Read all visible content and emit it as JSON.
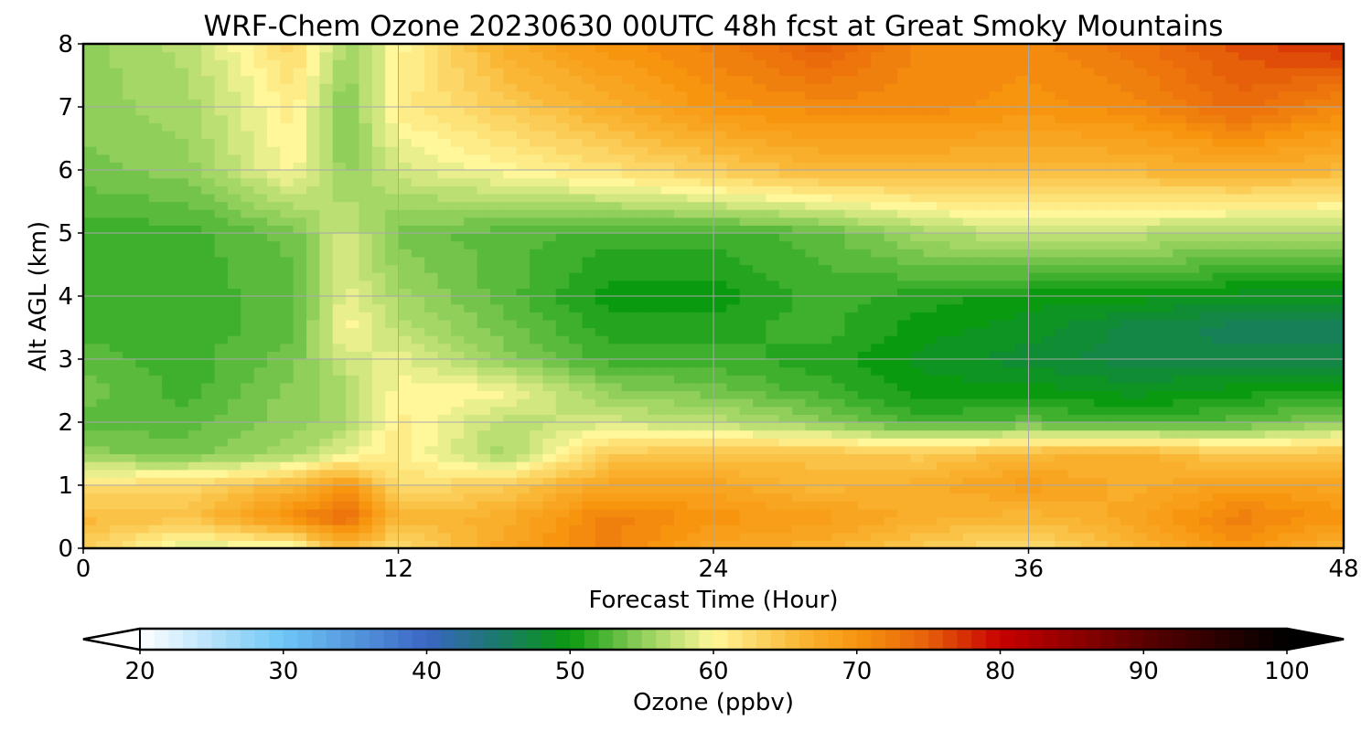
{
  "chart_data": {
    "type": "heatmap",
    "title": "WRF-Chem Ozone  20230630 00UTC 48h fcst at Great Smoky Mountains",
    "xlabel": "Forecast Time (Hour)",
    "ylabel": "Alt AGL (km)",
    "xlim": [
      0,
      48
    ],
    "ylim": [
      0,
      8
    ],
    "x_ticks": [
      0,
      12,
      24,
      36,
      48
    ],
    "y_ticks": [
      0,
      1,
      2,
      3,
      4,
      5,
      6,
      7,
      8
    ],
    "grid": true,
    "colorbar": {
      "label": "Ozone  (ppbv)",
      "min": 20,
      "max": 100,
      "ticks": [
        20,
        30,
        40,
        50,
        60,
        70,
        80,
        90,
        100
      ],
      "extend": "both",
      "stops": [
        {
          "v": 20,
          "c": "#ffffff"
        },
        {
          "v": 30,
          "c": "#6ec6f5"
        },
        {
          "v": 40,
          "c": "#3a66c4"
        },
        {
          "v": 45,
          "c": "#1a7a6a"
        },
        {
          "v": 50,
          "c": "#0a9a10"
        },
        {
          "v": 55,
          "c": "#8fcf5a"
        },
        {
          "v": 60,
          "c": "#fff799"
        },
        {
          "v": 66,
          "c": "#f9b735"
        },
        {
          "v": 70,
          "c": "#f7950f"
        },
        {
          "v": 75,
          "c": "#e6600a"
        },
        {
          "v": 80,
          "c": "#c80000"
        },
        {
          "v": 90,
          "c": "#5a0000"
        },
        {
          "v": 100,
          "c": "#000000"
        }
      ]
    },
    "grid_x": [
      0,
      4,
      8,
      10,
      12,
      16,
      20,
      24,
      28,
      32,
      36,
      40,
      44,
      48
    ],
    "grid_y": [
      0,
      0.5,
      1,
      1.5,
      2,
      2.5,
      3,
      3.5,
      4,
      5,
      6,
      7,
      8
    ],
    "values": [
      [
        64,
        58,
        59,
        66,
        62,
        68,
        72,
        68,
        67,
        64,
        62,
        66,
        70,
        66
      ],
      [
        66,
        65,
        71,
        74,
        66,
        67,
        72,
        70,
        69,
        67,
        66,
        68,
        72,
        70
      ],
      [
        62,
        63,
        66,
        70,
        62,
        64,
        68,
        68,
        66,
        67,
        69,
        67,
        69,
        68
      ],
      [
        55,
        54,
        56,
        59,
        61,
        56,
        64,
        65,
        65,
        64,
        66,
        67,
        64,
        65
      ],
      [
        53,
        53,
        55,
        56,
        61,
        57,
        58,
        57,
        55,
        52,
        53,
        52,
        53,
        55
      ],
      [
        54,
        52,
        55,
        56,
        60,
        60,
        55,
        54,
        52,
        50,
        50,
        49,
        50,
        51
      ],
      [
        53,
        52,
        54,
        58,
        59,
        55,
        52,
        52,
        51,
        49,
        48,
        47,
        47,
        47
      ],
      [
        52,
        52,
        53,
        60,
        57,
        54,
        51,
        51,
        52,
        50,
        49,
        47,
        46,
        46
      ],
      [
        52,
        52,
        53,
        59,
        56,
        53,
        50,
        50,
        52,
        51,
        50,
        50,
        49,
        49
      ],
      [
        52,
        52,
        54,
        58,
        54,
        53,
        52,
        52,
        53,
        56,
        58,
        57,
        56,
        56
      ],
      [
        54,
        55,
        60,
        55,
        58,
        60,
        62,
        64,
        66,
        66,
        66,
        66,
        67,
        66
      ],
      [
        55,
        56,
        61,
        54,
        61,
        64,
        67,
        70,
        71,
        71,
        70,
        71,
        74,
        71
      ],
      [
        55,
        57,
        63,
        56,
        60,
        67,
        70,
        72,
        75,
        71,
        71,
        73,
        76,
        78
      ]
    ]
  }
}
